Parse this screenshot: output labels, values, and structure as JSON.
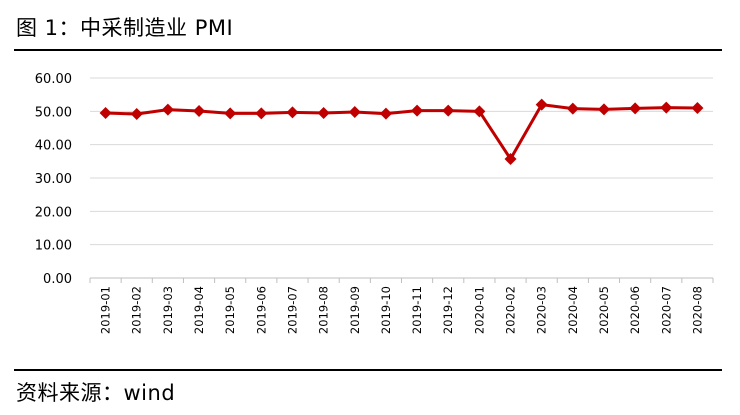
{
  "figure": {
    "title": "图 1：中采制造业 PMI",
    "source": "资料来源：wind"
  },
  "colors": {
    "series": "#c00000",
    "grid": "#d9d9d9",
    "axis": "#bfbfbf"
  },
  "chart_data": {
    "type": "line",
    "title": "",
    "xlabel": "",
    "ylabel": "",
    "ylim": [
      0,
      60
    ],
    "yticks": [
      "0.00",
      "10.00",
      "20.00",
      "30.00",
      "40.00",
      "50.00",
      "60.00"
    ],
    "grid": true,
    "legend": "none",
    "categories": [
      "2019-01",
      "2019-02",
      "2019-03",
      "2019-04",
      "2019-05",
      "2019-06",
      "2019-07",
      "2019-08",
      "2019-09",
      "2019-10",
      "2019-11",
      "2019-12",
      "2020-01",
      "2020-02",
      "2020-03",
      "2020-04",
      "2020-05",
      "2020-06",
      "2020-07",
      "2020-08"
    ],
    "series": [
      {
        "values": [
          49.5,
          49.2,
          50.5,
          50.1,
          49.4,
          49.4,
          49.7,
          49.5,
          49.8,
          49.3,
          50.2,
          50.2,
          50.0,
          35.7,
          52.0,
          50.8,
          50.6,
          50.9,
          51.1,
          51.0
        ]
      }
    ]
  }
}
